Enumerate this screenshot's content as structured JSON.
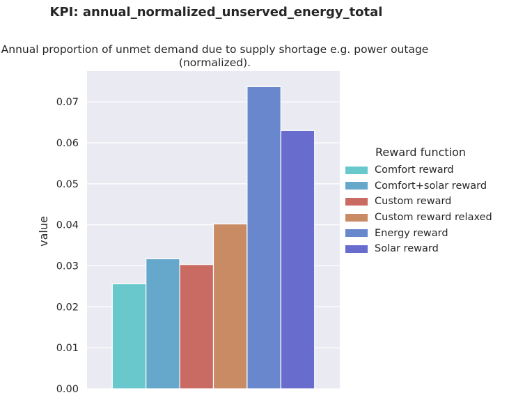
{
  "chart_data": {
    "type": "bar",
    "suptitle": "KPI: annual_normalized_unserved_energy_total",
    "title": "Annual proportion of unmet demand due to supply shortage e.g. power outage (normalized).",
    "xlabel": "",
    "ylabel": "value",
    "ylim": [
      0,
      0.0775
    ],
    "yticks": [
      "0.00",
      "0.01",
      "0.02",
      "0.03",
      "0.04",
      "0.05",
      "0.06",
      "0.07"
    ],
    "grid": true,
    "legend_title": "Reward function",
    "legend_position": "right",
    "series": [
      {
        "name": "Comfort reward",
        "value": 0.0256,
        "color": "#68c8cb"
      },
      {
        "name": "Comfort+solar reward",
        "value": 0.0317,
        "color": "#66a8cb"
      },
      {
        "name": "Custom reward",
        "value": 0.0303,
        "color": "#c96b63"
      },
      {
        "name": "Custom reward relaxed",
        "value": 0.0402,
        "color": "#c98b64"
      },
      {
        "name": "Energy reward",
        "value": 0.0737,
        "color": "#6887cd"
      },
      {
        "name": "Solar reward",
        "value": 0.063,
        "color": "#676ccd"
      }
    ]
  }
}
